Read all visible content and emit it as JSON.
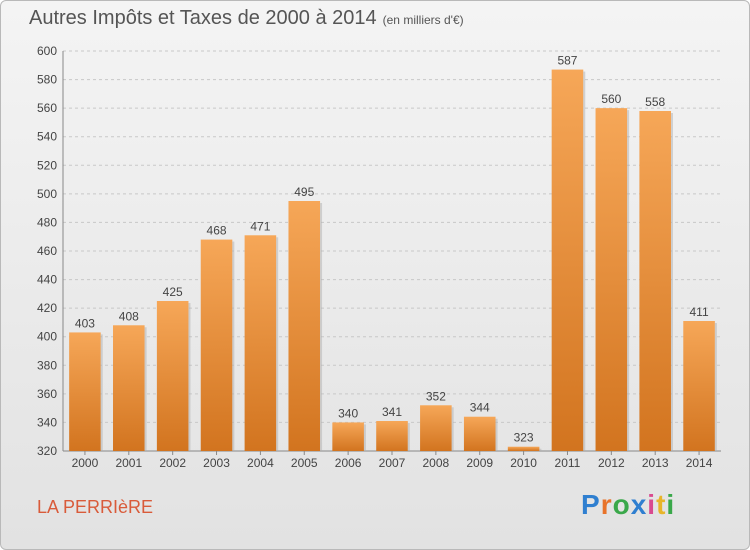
{
  "header": {
    "title": "Autres Impôts et Taxes de 2000 à 2014",
    "subtitle": "(en milliers d'€)"
  },
  "footer": {
    "place": "LA PERRIèRE",
    "logo": "Proxiti",
    "logo_colors": [
      "#2f7fd0",
      "#e8732a",
      "#3aa84a",
      "#2f7fd0",
      "#d94a8f",
      "#e8b52a",
      "#3aa84a"
    ]
  },
  "colors": {
    "bar_light": "#f6a758",
    "bar_dark": "#d2741f",
    "grid": "#c8c8c8",
    "axis_text": "#444444"
  },
  "chart_data": {
    "type": "bar",
    "categories": [
      "2000",
      "2001",
      "2002",
      "2003",
      "2004",
      "2005",
      "2006",
      "2007",
      "2008",
      "2009",
      "2010",
      "2011",
      "2012",
      "2013",
      "2014"
    ],
    "values": [
      403,
      408,
      425,
      468,
      471,
      495,
      340,
      341,
      352,
      344,
      323,
      587,
      560,
      558,
      411
    ],
    "title": "Autres Impôts et Taxes de 2000 à 2014",
    "subtitle": "(en milliers d'€)",
    "xlabel": "",
    "ylabel": "",
    "ylim": [
      320,
      600
    ],
    "yticks": [
      320,
      340,
      360,
      380,
      400,
      420,
      440,
      460,
      480,
      500,
      520,
      540,
      560,
      580,
      600
    ],
    "grid": true,
    "data_labels": true
  }
}
